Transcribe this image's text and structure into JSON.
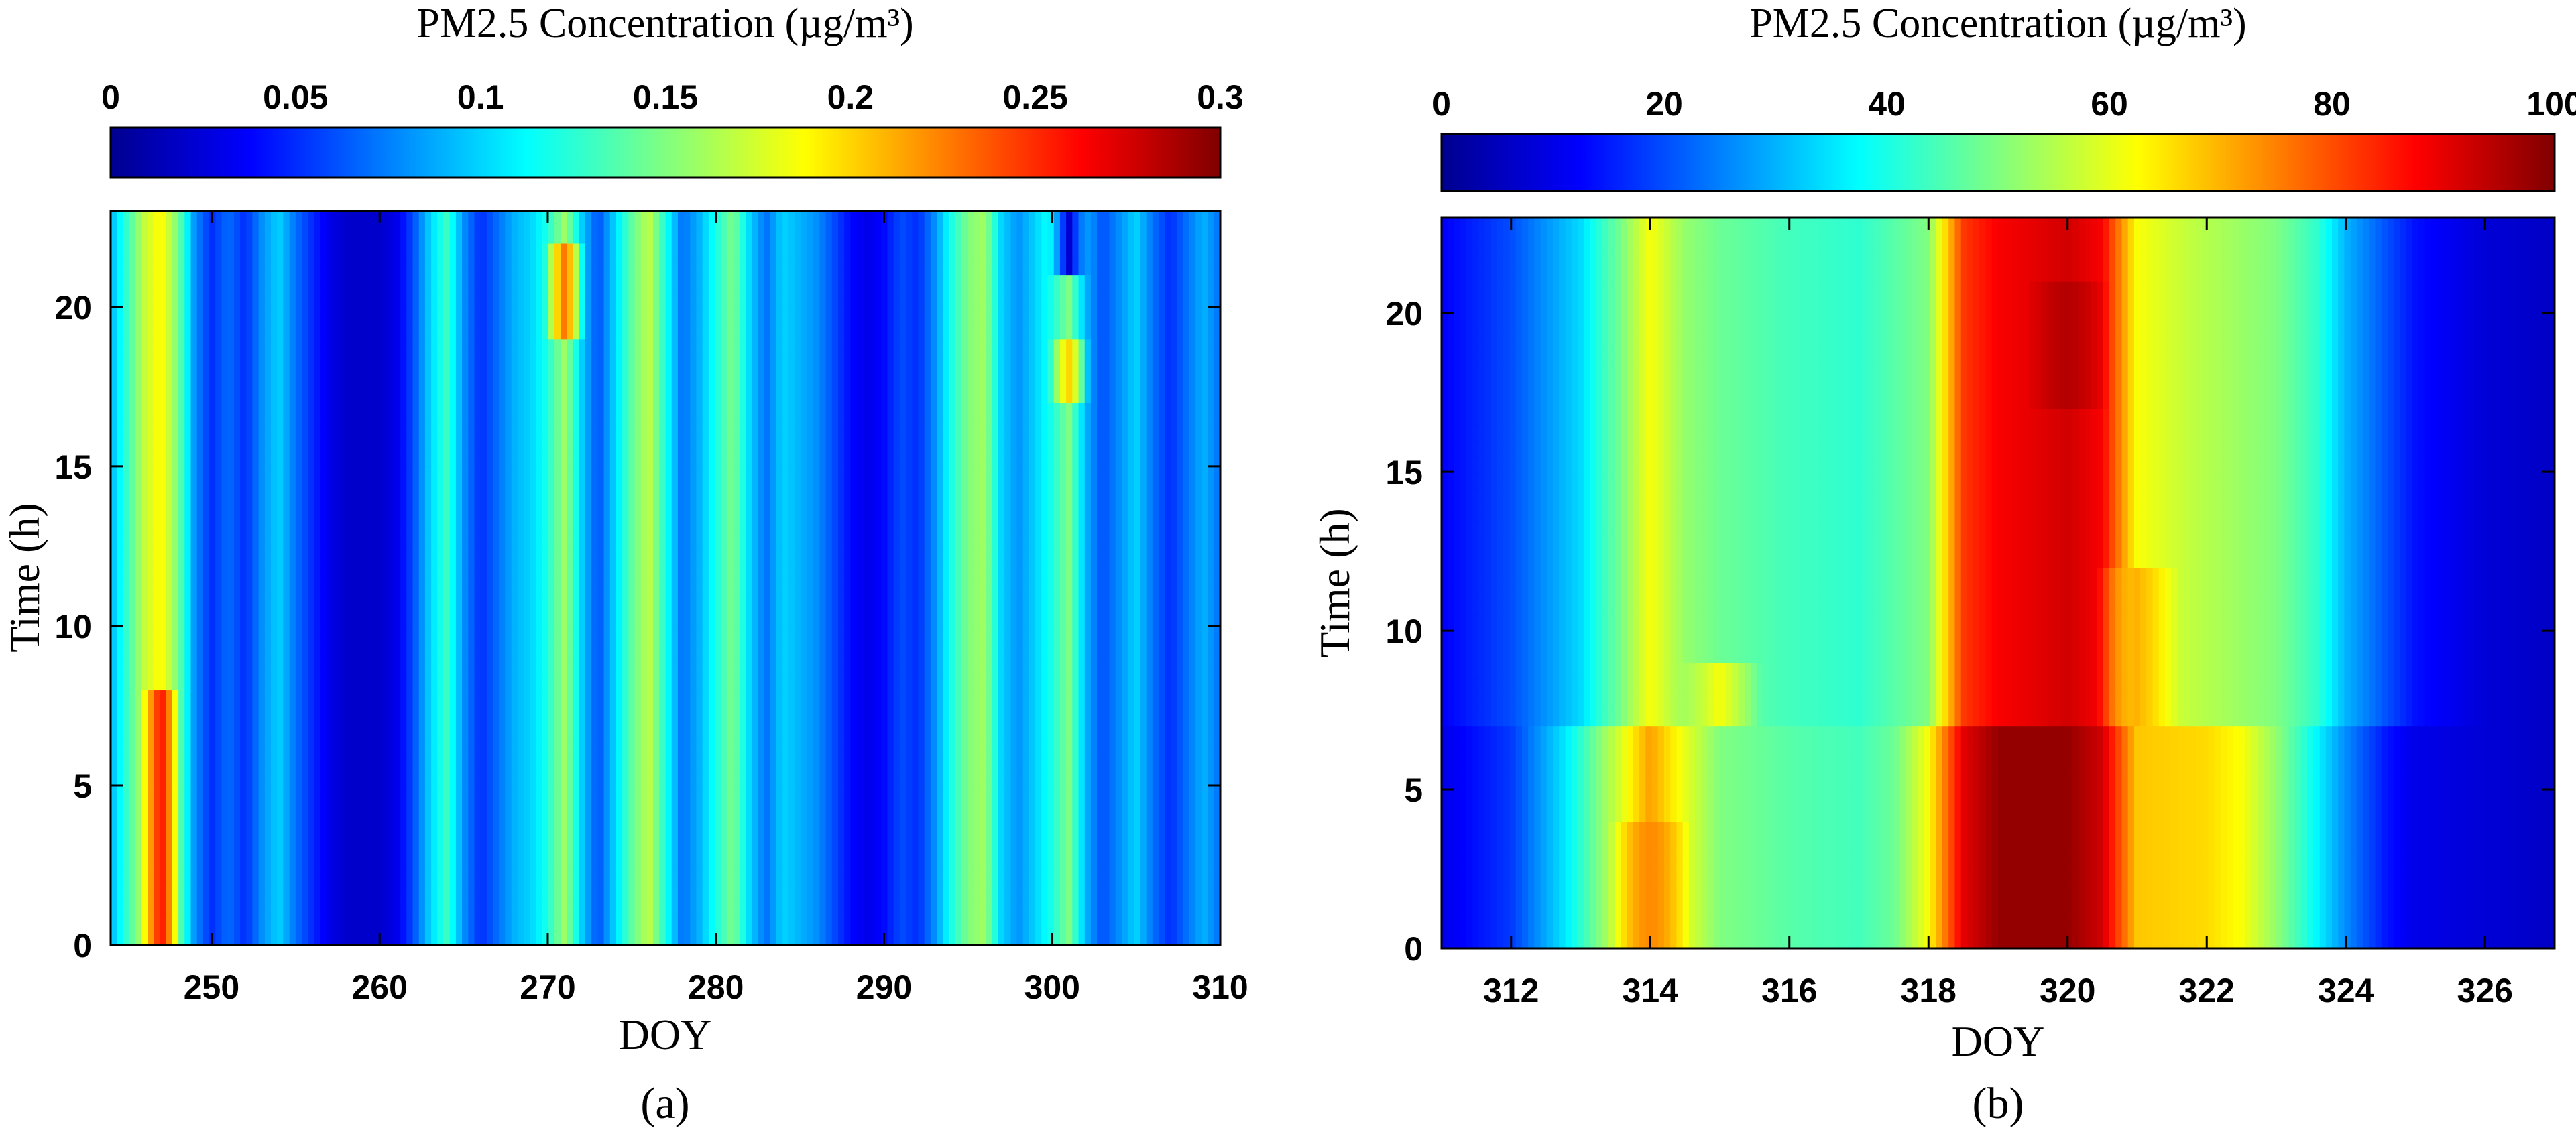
{
  "colormap": [
    "#00008f",
    "#0000ff",
    "#0080ff",
    "#00ffff",
    "#80ff80",
    "#ffff00",
    "#ff8000",
    "#ff0000",
    "#800000"
  ],
  "chart_data": [
    {
      "type": "heatmap",
      "panel_label": "(a)",
      "colorbar": {
        "title": "PM2.5 Concentration (µg/m³)",
        "range": [
          0,
          0.3
        ],
        "ticks": [
          0,
          0.05,
          0.1,
          0.15,
          0.2,
          0.25,
          0.3
        ],
        "tick_labels": [
          "0",
          "0.05",
          "0.1",
          "0.15",
          "0.2",
          "0.25",
          "0.3"
        ],
        "placement": "top"
      },
      "xlabel": "DOY",
      "ylabel": "Time (h)",
      "xlim": [
        244,
        310
      ],
      "ylim": [
        0,
        23
      ],
      "xticks": [
        250,
        260,
        270,
        280,
        290,
        300,
        310
      ],
      "xtick_labels": [
        "250",
        "260",
        "270",
        "280",
        "290",
        "300",
        "310"
      ],
      "yticks": [
        0,
        5,
        10,
        15,
        20
      ],
      "ytick_labels": [
        "0",
        "5",
        "10",
        "15",
        "20"
      ],
      "approx_day_values": [
        [
          244,
          0.09
        ],
        [
          245,
          0.13
        ],
        [
          246,
          0.17
        ],
        [
          247,
          0.19
        ],
        [
          248,
          0.15
        ],
        [
          249,
          0.08
        ],
        [
          250,
          0.05
        ],
        [
          251,
          0.07
        ],
        [
          252,
          0.05
        ],
        [
          253,
          0.08
        ],
        [
          254,
          0.1
        ],
        [
          255,
          0.07
        ],
        [
          256,
          0.05
        ],
        [
          257,
          0.03
        ],
        [
          258,
          0.02
        ],
        [
          259,
          0.02
        ],
        [
          260,
          0.02
        ],
        [
          261,
          0.03
        ],
        [
          262,
          0.06
        ],
        [
          263,
          0.1
        ],
        [
          264,
          0.13
        ],
        [
          265,
          0.08
        ],
        [
          266,
          0.05
        ],
        [
          267,
          0.07
        ],
        [
          268,
          0.09
        ],
        [
          269,
          0.1
        ],
        [
          270,
          0.12
        ],
        [
          271,
          0.16
        ],
        [
          272,
          0.1
        ],
        [
          273,
          0.06
        ],
        [
          274,
          0.1
        ],
        [
          275,
          0.14
        ],
        [
          276,
          0.17
        ],
        [
          277,
          0.12
        ],
        [
          278,
          0.07
        ],
        [
          279,
          0.09
        ],
        [
          280,
          0.12
        ],
        [
          281,
          0.15
        ],
        [
          282,
          0.1
        ],
        [
          283,
          0.07
        ],
        [
          284,
          0.1
        ],
        [
          285,
          0.09
        ],
        [
          286,
          0.08
        ],
        [
          287,
          0.06
        ],
        [
          288,
          0.04
        ],
        [
          289,
          0.03
        ],
        [
          290,
          0.04
        ],
        [
          291,
          0.06
        ],
        [
          292,
          0.05
        ],
        [
          293,
          0.08
        ],
        [
          294,
          0.12
        ],
        [
          295,
          0.15
        ],
        [
          296,
          0.16
        ],
        [
          297,
          0.1
        ],
        [
          298,
          0.08
        ],
        [
          299,
          0.1
        ],
        [
          300,
          0.12
        ],
        [
          301,
          0.15
        ],
        [
          302,
          0.09
        ],
        [
          303,
          0.06
        ],
        [
          304,
          0.08
        ],
        [
          305,
          0.1
        ],
        [
          306,
          0.07
        ],
        [
          307,
          0.05
        ],
        [
          308,
          0.07
        ],
        [
          309,
          0.09
        ],
        [
          310,
          0.07
        ]
      ],
      "hotspots": [
        {
          "doy": 247,
          "hour_min": 0,
          "hour_max": 8,
          "value": 0.26
        },
        {
          "doy": 271,
          "hour_min": 19,
          "hour_max": 22,
          "value": 0.23
        },
        {
          "doy": 301,
          "hour_min": 17,
          "hour_max": 19,
          "value": 0.2
        },
        {
          "doy": 301,
          "hour_min": 21,
          "hour_max": 23,
          "value": 0.02
        }
      ]
    },
    {
      "type": "heatmap",
      "panel_label": "(b)",
      "colorbar": {
        "title": "PM2.5 Concentration (µg/m³)",
        "range": [
          0,
          100
        ],
        "ticks": [
          0,
          20,
          40,
          60,
          80,
          100
        ],
        "tick_labels": [
          "0",
          "20",
          "40",
          "60",
          "80",
          "100"
        ],
        "placement": "top"
      },
      "xlabel": "DOY",
      "ylabel": "Time (h)",
      "xlim": [
        311,
        327
      ],
      "ylim": [
        0,
        23
      ],
      "xticks": [
        312,
        314,
        316,
        318,
        320,
        322,
        324,
        326
      ],
      "xtick_labels": [
        "312",
        "314",
        "316",
        "318",
        "320",
        "322",
        "324",
        "326"
      ],
      "yticks": [
        0,
        5,
        10,
        15,
        20
      ],
      "ytick_labels": [
        "0",
        "5",
        "10",
        "15",
        "20"
      ],
      "approx_day_values_hours_7_to_23": [
        [
          311,
          12
        ],
        [
          312,
          20
        ],
        [
          313,
          34
        ],
        [
          313.6,
          50
        ],
        [
          314,
          62
        ],
        [
          314.5,
          52
        ],
        [
          315,
          48
        ],
        [
          316,
          44
        ],
        [
          317,
          42
        ],
        [
          318,
          50
        ],
        [
          318.5,
          82
        ],
        [
          319,
          88
        ],
        [
          320,
          92
        ],
        [
          320.5,
          88
        ],
        [
          321,
          62
        ],
        [
          321.5,
          58
        ],
        [
          322,
          55
        ],
        [
          323,
          50
        ],
        [
          323.6,
          42
        ],
        [
          324,
          30
        ],
        [
          324.6,
          20
        ],
        [
          325,
          14
        ],
        [
          326,
          8
        ],
        [
          327,
          6
        ]
      ],
      "approx_day_values_hours_0_to_7": [
        [
          311,
          10
        ],
        [
          312,
          18
        ],
        [
          312.8,
          36
        ],
        [
          313.6,
          60
        ],
        [
          314,
          72
        ],
        [
          314.5,
          60
        ],
        [
          315,
          50
        ],
        [
          316,
          46
        ],
        [
          317,
          44
        ],
        [
          317.5,
          48
        ],
        [
          318,
          62
        ],
        [
          318.5,
          90
        ],
        [
          319,
          98
        ],
        [
          320,
          98
        ],
        [
          320.5,
          92
        ],
        [
          321,
          68
        ],
        [
          322,
          66
        ],
        [
          322.5,
          62
        ],
        [
          323,
          52
        ],
        [
          324,
          26
        ],
        [
          324.6,
          14
        ],
        [
          325,
          10
        ],
        [
          326,
          8
        ],
        [
          327,
          6
        ]
      ],
      "hotspots": [
        {
          "doy": 314,
          "hour_min": 0,
          "hour_max": 4,
          "value": 74
        },
        {
          "doy": 320,
          "hour_min": 17,
          "hour_max": 21,
          "value": 95
        },
        {
          "doy": 321,
          "hour_min": 7,
          "hour_max": 12,
          "value": 70
        },
        {
          "doy": 315,
          "hour_min": 7,
          "hour_max": 9,
          "value": 62
        }
      ]
    }
  ]
}
